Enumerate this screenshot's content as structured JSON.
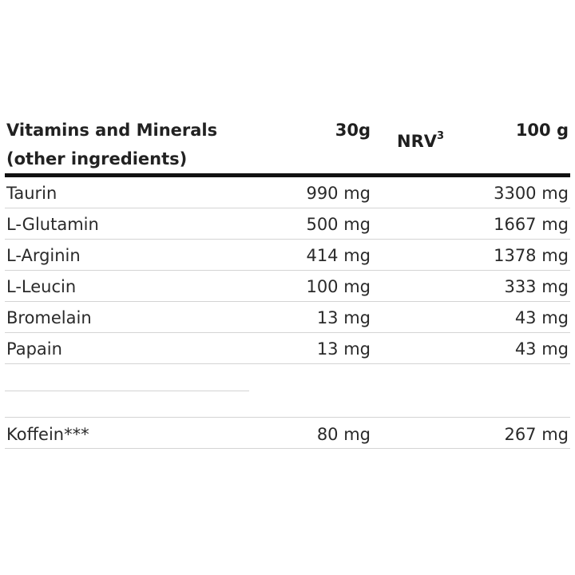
{
  "header": {
    "name_line1": "Vitamins and Minerals",
    "name_line2": "(other ingredients)",
    "col_30g": "30g",
    "col_nrv": "NRV",
    "col_nrv_sup": "3",
    "col_100g": "100 g"
  },
  "rows": [
    {
      "name": "Taurin",
      "v30": "990 mg",
      "v100": "3300 mg"
    },
    {
      "name": "L-Glutamin",
      "v30": "500 mg",
      "v100": "1667 mg"
    },
    {
      "name": "L-Arginin",
      "v30": "414 mg",
      "v100": "1378 mg"
    },
    {
      "name": "L-Leucin",
      "v30": "100 mg",
      "v100": "333 mg"
    },
    {
      "name": "Bromelain",
      "v30": "13 mg",
      "v100": "43 mg"
    },
    {
      "name": "Papain",
      "v30": "13 mg",
      "v100": "43 mg"
    }
  ],
  "extra_row": {
    "name": "Koffein***",
    "v30": "80 mg",
    "v100": "267 mg"
  }
}
